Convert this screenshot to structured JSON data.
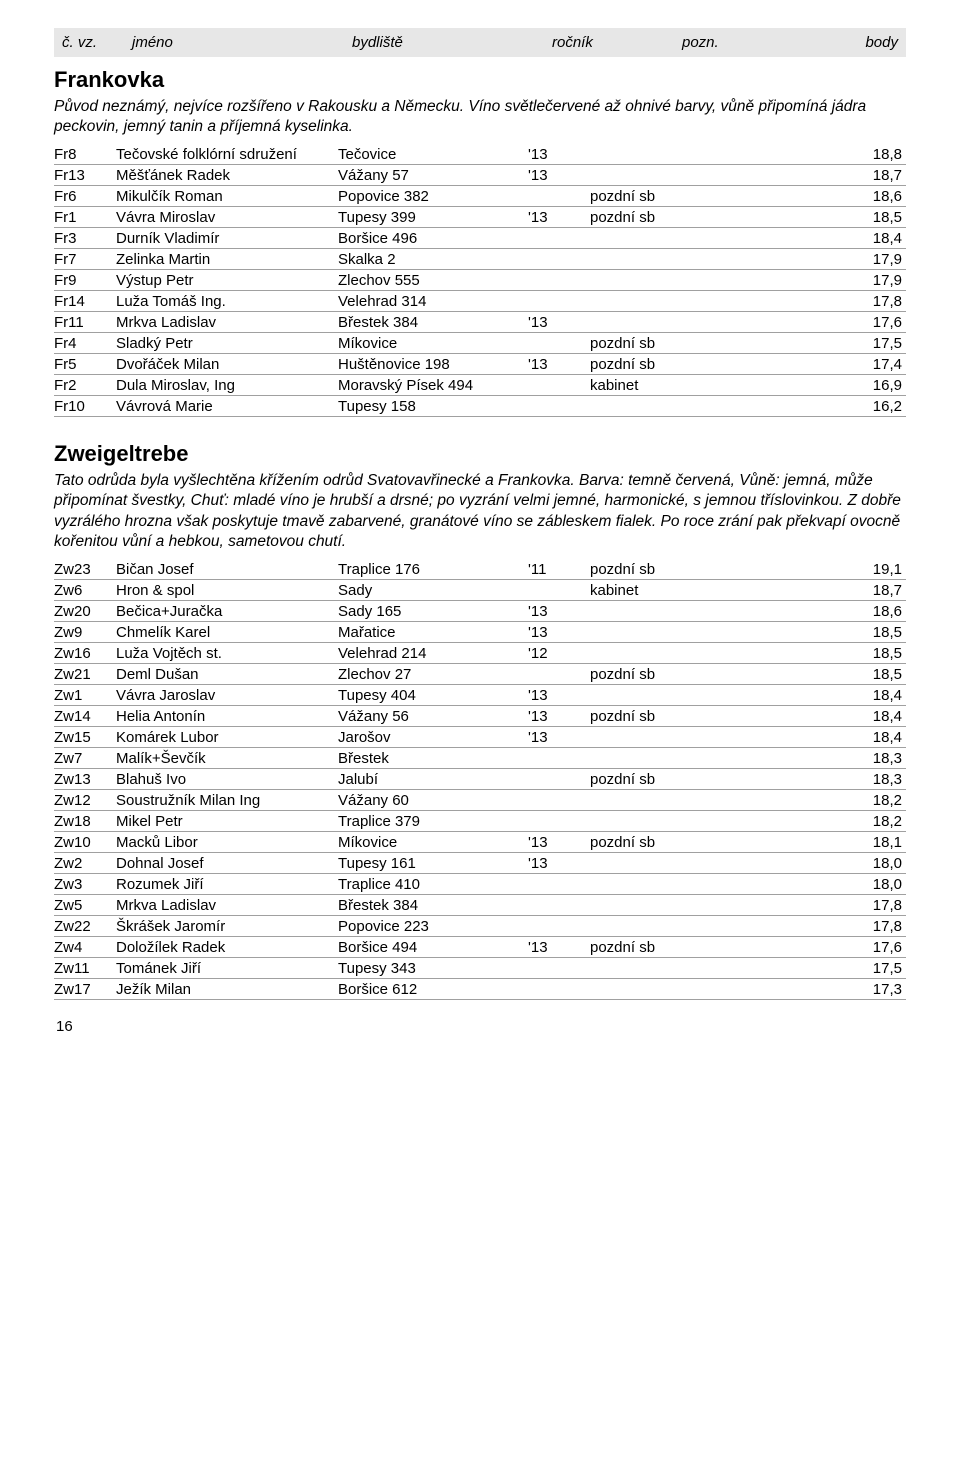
{
  "header": {
    "code": "č. vz.",
    "name": "jméno",
    "addr": "bydliště",
    "year": "ročník",
    "note": "pozn.",
    "points": "body"
  },
  "sections": [
    {
      "title": "Frankovka",
      "description": "Původ neznámý, nejvíce rozšířeno v Rakousku a Německu. Víno světlečervené až ohnivé barvy, vůně připomíná jádra peckovin, jemný tanin a příjemná kyselinka.",
      "rows": [
        {
          "code": "Fr8",
          "name": "Tečovské folklórní sdružení",
          "addr": "Tečovice",
          "year": "'13",
          "note": "",
          "points": "18,8"
        },
        {
          "code": "Fr13",
          "name": "Měšťánek Radek",
          "addr": "Vážany 57",
          "year": "'13",
          "note": "",
          "points": "18,7"
        },
        {
          "code": "Fr6",
          "name": "Mikulčík Roman",
          "addr": "Popovice 382",
          "year": "",
          "note": "pozdní sb",
          "points": "18,6"
        },
        {
          "code": "Fr1",
          "name": "Vávra Miroslav",
          "addr": "Tupesy 399",
          "year": "'13",
          "note": "pozdní sb",
          "points": "18,5"
        },
        {
          "code": "Fr3",
          "name": "Durník Vladimír",
          "addr": "Boršice 496",
          "year": "",
          "note": "",
          "points": "18,4"
        },
        {
          "code": "Fr7",
          "name": "Zelinka Martin",
          "addr": "Skalka 2",
          "year": "",
          "note": "",
          "points": "17,9"
        },
        {
          "code": "Fr9",
          "name": "Výstup Petr",
          "addr": "Zlechov 555",
          "year": "",
          "note": "",
          "points": "17,9"
        },
        {
          "code": "Fr14",
          "name": "Luža Tomáš Ing.",
          "addr": "Velehrad 314",
          "year": "",
          "note": "",
          "points": "17,8"
        },
        {
          "code": "Fr11",
          "name": "Mrkva Ladislav",
          "addr": "Břestek 384",
          "year": "'13",
          "note": "",
          "points": "17,6"
        },
        {
          "code": "Fr4",
          "name": "Sladký Petr",
          "addr": "Míkovice",
          "year": "",
          "note": "pozdní sb",
          "points": "17,5"
        },
        {
          "code": "Fr5",
          "name": "Dvořáček Milan",
          "addr": "Huštěnovice 198",
          "year": "'13",
          "note": "pozdní sb",
          "points": "17,4"
        },
        {
          "code": "Fr2",
          "name": "Dula Miroslav, Ing",
          "addr": "Moravský Písek 494",
          "year": "",
          "note": "kabinet",
          "points": "16,9"
        },
        {
          "code": "Fr10",
          "name": "Vávrová Marie",
          "addr": "Tupesy 158",
          "year": "",
          "note": "",
          "points": "16,2"
        }
      ]
    },
    {
      "title": "Zweigeltrebe",
      "description": "Tato odrůda byla vyšlechtěna křížením odrůd Svatovavřinecké a Frankovka. Barva: temně červená, Vůně: jemná, může připomínat švestky, Chuť: mladé víno je hrubší a drsné; po vyzrání velmi jemné, harmonické, s jemnou tříslovinkou. Z dobře vyzrálého hrozna však poskytuje tmavě zabarvené, granátové víno se zábleskem fialek. Po roce zrání pak překvapí ovocně kořenitou vůní a hebkou, sametovou chutí.",
      "rows": [
        {
          "code": "Zw23",
          "name": "Bičan Josef",
          "addr": "Traplice 176",
          "year": "'11",
          "note": "pozdní sb",
          "points": "19,1"
        },
        {
          "code": "Zw6",
          "name": "Hron & spol",
          "addr": "Sady",
          "year": "",
          "note": "kabinet",
          "points": "18,7"
        },
        {
          "code": "Zw20",
          "name": "Bečica+Juračka",
          "addr": "Sady 165",
          "year": "'13",
          "note": "",
          "points": "18,6"
        },
        {
          "code": "Zw9",
          "name": "Chmelík Karel",
          "addr": "Mařatice",
          "year": "'13",
          "note": "",
          "points": "18,5"
        },
        {
          "code": "Zw16",
          "name": "Luža Vojtěch st.",
          "addr": "Velehrad 214",
          "year": "'12",
          "note": "",
          "points": "18,5"
        },
        {
          "code": "Zw21",
          "name": "Deml Dušan",
          "addr": "Zlechov 27",
          "year": "",
          "note": "pozdní sb",
          "points": "18,5"
        },
        {
          "code": "Zw1",
          "name": "Vávra Jaroslav",
          "addr": "Tupesy 404",
          "year": "'13",
          "note": "",
          "points": "18,4"
        },
        {
          "code": "Zw14",
          "name": "Helia Antonín",
          "addr": "Vážany 56",
          "year": "'13",
          "note": "pozdní sb",
          "points": "18,4"
        },
        {
          "code": "Zw15",
          "name": "Komárek Lubor",
          "addr": "Jarošov",
          "year": "'13",
          "note": "",
          "points": "18,4"
        },
        {
          "code": "Zw7",
          "name": "Malík+Ševčík",
          "addr": "Břestek",
          "year": "",
          "note": "",
          "points": "18,3"
        },
        {
          "code": "Zw13",
          "name": "Blahuš Ivo",
          "addr": "Jalubí",
          "year": "",
          "note": "pozdní sb",
          "points": "18,3"
        },
        {
          "code": "Zw12",
          "name": "Soustružník Milan Ing",
          "addr": "Vážany 60",
          "year": "",
          "note": "",
          "points": "18,2"
        },
        {
          "code": "Zw18",
          "name": "Mikel Petr",
          "addr": "Traplice 379",
          "year": "",
          "note": "",
          "points": "18,2"
        },
        {
          "code": "Zw10",
          "name": "Macků Libor",
          "addr": "Míkovice",
          "year": "'13",
          "note": "pozdní sb",
          "points": "18,1"
        },
        {
          "code": "Zw2",
          "name": "Dohnal Josef",
          "addr": "Tupesy 161",
          "year": "'13",
          "note": "",
          "points": "18,0"
        },
        {
          "code": "Zw3",
          "name": "Rozumek Jiří",
          "addr": "Traplice 410",
          "year": "",
          "note": "",
          "points": "18,0"
        },
        {
          "code": "Zw5",
          "name": "Mrkva Ladislav",
          "addr": "Břestek 384",
          "year": "",
          "note": "",
          "points": "17,8"
        },
        {
          "code": "Zw22",
          "name": "Škrášek Jaromír",
          "addr": "Popovice 223",
          "year": "",
          "note": "",
          "points": "17,8"
        },
        {
          "code": "Zw4",
          "name": "Doložílek Radek",
          "addr": "Boršice 494",
          "year": "'13",
          "note": "pozdní sb",
          "points": "17,6"
        },
        {
          "code": "Zw11",
          "name": "Tománek Jiří",
          "addr": "Tupesy 343",
          "year": "",
          "note": "",
          "points": "17,5"
        },
        {
          "code": "Zw17",
          "name": "Ježík Milan",
          "addr": "Boršice 612",
          "year": "",
          "note": "",
          "points": "17,3"
        }
      ]
    }
  ],
  "pageNumber": "16"
}
